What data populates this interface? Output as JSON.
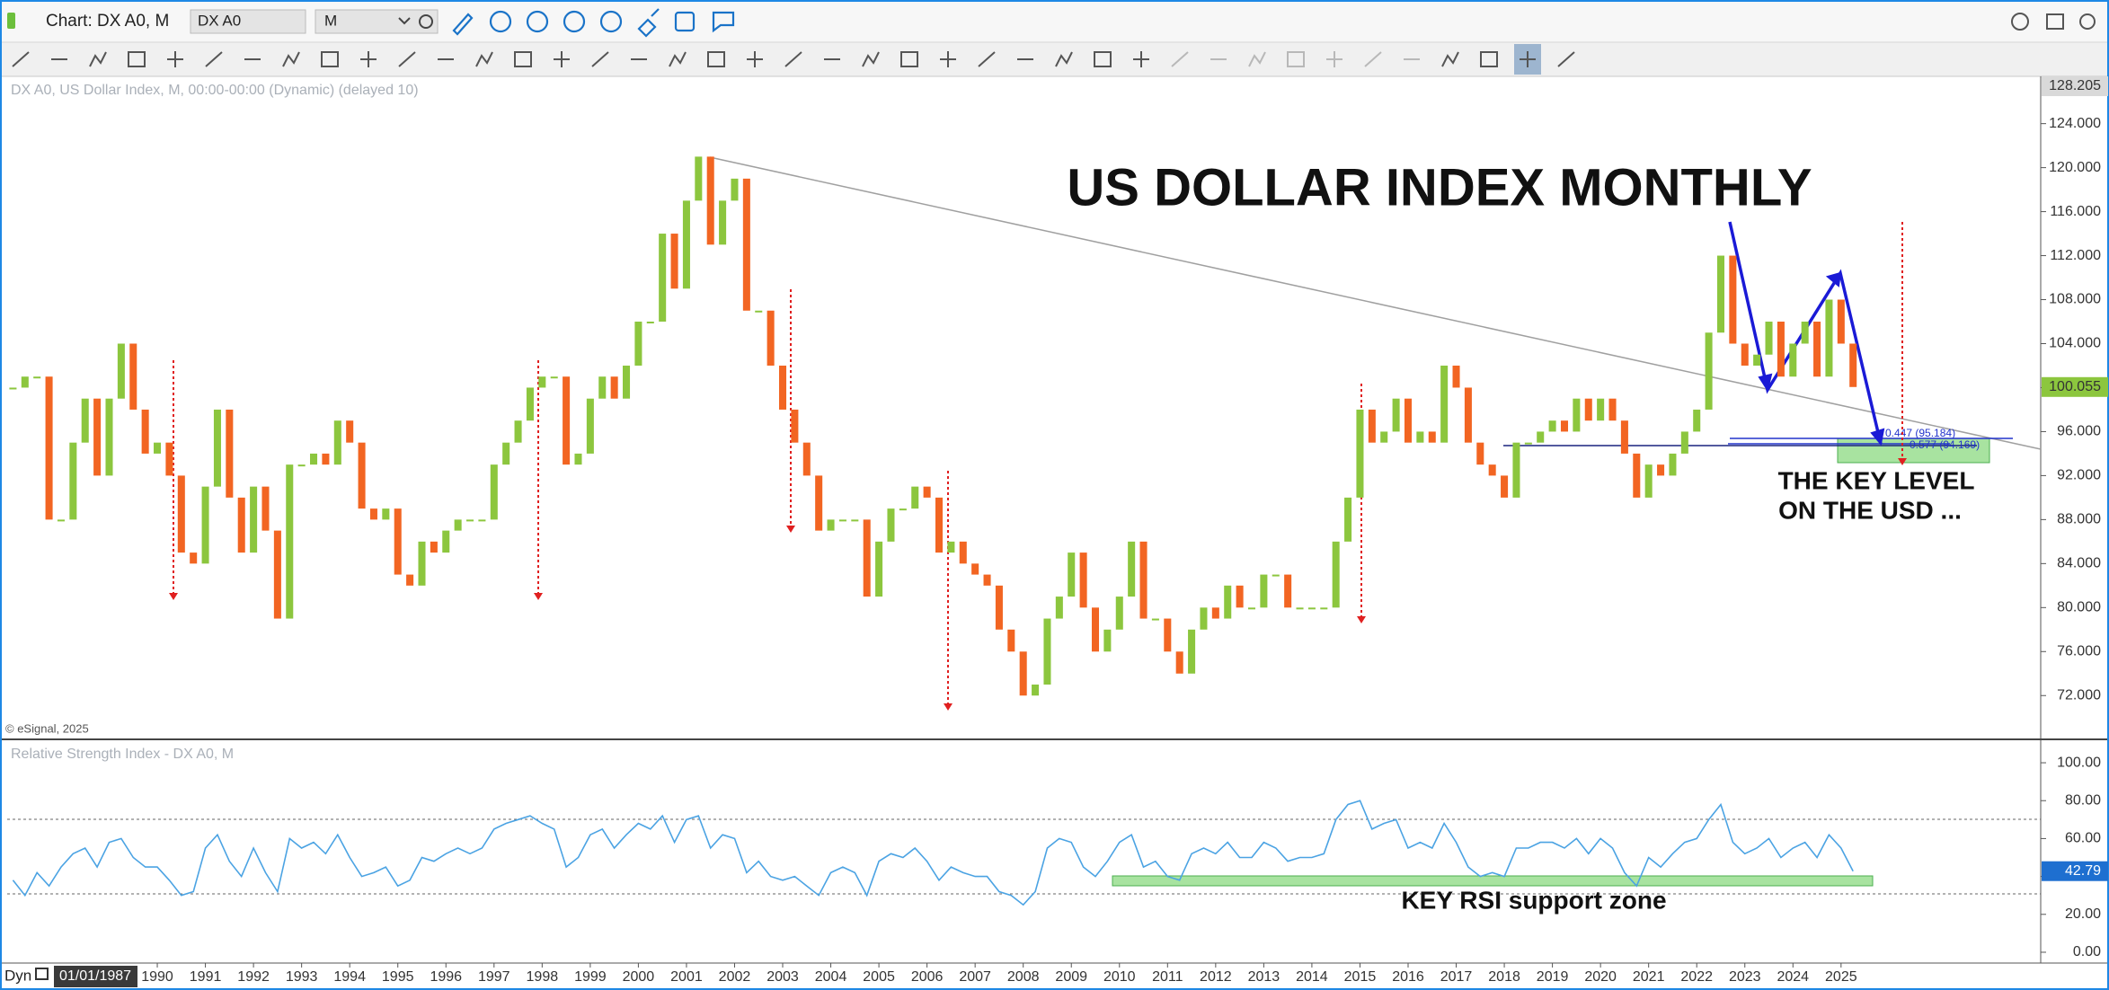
{
  "window": {
    "title": "Chart: DX A0, M",
    "symbol": "DX A0",
    "interval": "M",
    "mode": "Dyn",
    "cursor_date": "01/01/1987"
  },
  "chart_data": [
    {
      "type": "candlestick",
      "title": "US DOLLAR INDEX MONTHLY",
      "subtitle": "DX A0, US Dollar Index, M, 00:00-00:00 (Dynamic) (delayed 10)",
      "annotations": [
        "THE KEY LEVEL",
        "ON THE USD ..."
      ],
      "fib_labels": [
        "0.447 (95.184)",
        "0.577 (94.169)"
      ],
      "source": "© eSignal, 2025",
      "scale_top_label": 128.205,
      "up_color": "#8cc63e",
      "down_color": "#f26522",
      "grid": false,
      "xlim": [
        1986.88,
        2029.15
      ],
      "ylim": [
        68.1,
        128.3
      ],
      "yticks": [
        {
          "value": 72,
          "label": "72.000"
        },
        {
          "value": 76,
          "label": "76.000"
        },
        {
          "value": 80,
          "label": "80.000"
        },
        {
          "value": 84,
          "label": "84.000"
        },
        {
          "value": 88,
          "label": "88.000"
        },
        {
          "value": 92,
          "label": "92.000"
        },
        {
          "value": 96,
          "label": "96.000"
        },
        {
          "value": 100,
          "label": "100.000"
        },
        {
          "value": 104,
          "label": "104.000"
        },
        {
          "value": 108,
          "label": "108.000"
        },
        {
          "value": 112,
          "label": "112.000"
        },
        {
          "value": 116,
          "label": "116.000"
        },
        {
          "value": 120,
          "label": "120.000"
        },
        {
          "value": 124,
          "label": "124.000"
        }
      ],
      "x": [
        1987,
        1987.25,
        1987.5,
        1987.75,
        1988,
        1988.25,
        1988.5,
        1988.75,
        1989,
        1989.25,
        1989.5,
        1989.75,
        1990,
        1990.25,
        1990.5,
        1990.75,
        1991,
        1991.25,
        1991.5,
        1991.75,
        1992,
        1992.25,
        1992.5,
        1992.75,
        1993,
        1993.25,
        1993.5,
        1993.75,
        1994,
        1994.25,
        1994.5,
        1994.75,
        1995,
        1995.25,
        1995.5,
        1995.75,
        1996,
        1996.25,
        1996.5,
        1996.75,
        1997,
        1997.25,
        1997.5,
        1997.75,
        1998,
        1998.25,
        1998.5,
        1998.75,
        1999,
        1999.25,
        1999.5,
        1999.75,
        2000,
        2000.25,
        2000.5,
        2000.75,
        2001,
        2001.25,
        2001.5,
        2001.75,
        2002,
        2002.25,
        2002.5,
        2002.75,
        2003,
        2003.25,
        2003.5,
        2003.75,
        2004,
        2004.25,
        2004.5,
        2004.75,
        2005,
        2005.25,
        2005.5,
        2005.75,
        2006,
        2006.25,
        2006.5,
        2006.75,
        2007,
        2007.25,
        2007.5,
        2007.75,
        2008,
        2008.25,
        2008.5,
        2008.75,
        2009,
        2009.25,
        2009.5,
        2009.75,
        2010,
        2010.25,
        2010.5,
        2010.75,
        2011,
        2011.25,
        2011.5,
        2011.75,
        2012,
        2012.25,
        2012.5,
        2012.75,
        2013,
        2013.25,
        2013.5,
        2013.75,
        2014,
        2014.25,
        2014.5,
        2014.75,
        2015,
        2015.25,
        2015.5,
        2015.75,
        2016,
        2016.25,
        2016.5,
        2016.75,
        2017,
        2017.25,
        2017.5,
        2017.75,
        2018,
        2018.25,
        2018.5,
        2018.75,
        2019,
        2019.25,
        2019.5,
        2019.75,
        2020,
        2020.25,
        2020.5,
        2020.75,
        2021,
        2021.25,
        2021.5,
        2021.75,
        2022,
        2022.25,
        2022.5,
        2022.75,
        2023,
        2023.25,
        2023.5,
        2023.75,
        2024,
        2024.25,
        2024.5,
        2024.75,
        2025,
        2025.25
      ],
      "values": [
        100,
        101,
        101,
        88,
        88,
        95,
        99,
        92,
        99,
        104,
        98,
        94,
        95,
        92,
        85,
        84,
        91,
        98,
        90,
        85,
        91,
        87,
        79,
        93,
        93,
        94,
        93,
        97,
        95,
        89,
        88,
        89,
        83,
        82,
        86,
        85,
        87,
        88,
        88,
        88,
        93,
        95,
        97,
        100,
        101,
        101,
        93,
        94,
        99,
        101,
        99,
        102,
        106,
        106,
        114,
        109,
        117,
        121,
        113,
        117,
        119,
        107,
        107,
        102,
        98,
        95,
        92,
        87,
        88,
        88,
        88,
        81,
        86,
        89,
        89,
        91,
        90,
        85,
        86,
        84,
        83,
        82,
        78,
        76,
        72,
        73,
        79,
        81,
        85,
        80,
        76,
        78,
        81,
        86,
        79,
        79,
        76,
        74,
        78,
        80,
        79,
        82,
        80,
        80,
        83,
        83,
        80,
        80,
        80,
        80,
        86,
        90,
        98,
        95,
        96,
        99,
        95,
        96,
        95,
        102,
        100,
        95,
        93,
        92,
        90,
        95,
        95,
        96,
        97,
        96,
        99,
        97,
        99,
        97,
        94,
        90,
        93,
        92,
        94,
        96,
        98,
        105,
        112,
        104,
        102,
        103,
        106,
        101,
        104,
        106,
        101,
        108,
        104,
        100.055
      ]
    },
    {
      "type": "line",
      "title": "Relative Strength Index - DX A0, M",
      "annotation": "KEY RSI support zone",
      "color": "#4ba3e3",
      "grid": false,
      "xlim": [
        1986.88,
        2029.15
      ],
      "xticks": [
        1990,
        1991,
        1992,
        1993,
        1994,
        1995,
        1996,
        1997,
        1998,
        1999,
        2000,
        2001,
        2002,
        2003,
        2004,
        2005,
        2006,
        2007,
        2008,
        2009,
        2010,
        2011,
        2012,
        2013,
        2014,
        2015,
        2016,
        2017,
        2018,
        2019,
        2020,
        2021,
        2022,
        2023,
        2024,
        2025
      ],
      "ylim": [
        -5.7,
        111.4
      ],
      "yticks": [
        {
          "value": 0,
          "label": "0.00"
        },
        {
          "value": 20,
          "label": "20.00"
        },
        {
          "value": 40,
          "label": "40.00"
        },
        {
          "value": 60,
          "label": "60.00"
        },
        {
          "value": 80,
          "label": "80.00"
        },
        {
          "value": 100,
          "label": "100.00"
        }
      ],
      "x": [
        1987,
        1987.25,
        1987.5,
        1987.75,
        1988,
        1988.25,
        1988.5,
        1988.75,
        1989,
        1989.25,
        1989.5,
        1989.75,
        1990,
        1990.25,
        1990.5,
        1990.75,
        1991,
        1991.25,
        1991.5,
        1991.75,
        1992,
        1992.25,
        1992.5,
        1992.75,
        1993,
        1993.25,
        1993.5,
        1993.75,
        1994,
        1994.25,
        1994.5,
        1994.75,
        1995,
        1995.25,
        1995.5,
        1995.75,
        1996,
        1996.25,
        1996.5,
        1996.75,
        1997,
        1997.25,
        1997.5,
        1997.75,
        1998,
        1998.25,
        1998.5,
        1998.75,
        1999,
        1999.25,
        1999.5,
        1999.75,
        2000,
        2000.25,
        2000.5,
        2000.75,
        2001,
        2001.25,
        2001.5,
        2001.75,
        2002,
        2002.25,
        2002.5,
        2002.75,
        2003,
        2003.25,
        2003.5,
        2003.75,
        2004,
        2004.25,
        2004.5,
        2004.75,
        2005,
        2005.25,
        2005.5,
        2005.75,
        2006,
        2006.25,
        2006.5,
        2006.75,
        2007,
        2007.25,
        2007.5,
        2007.75,
        2008,
        2008.25,
        2008.5,
        2008.75,
        2009,
        2009.25,
        2009.5,
        2009.75,
        2010,
        2010.25,
        2010.5,
        2010.75,
        2011,
        2011.25,
        2011.5,
        2011.75,
        2012,
        2012.25,
        2012.5,
        2012.75,
        2013,
        2013.25,
        2013.5,
        2013.75,
        2014,
        2014.25,
        2014.5,
        2014.75,
        2015,
        2015.25,
        2015.5,
        2015.75,
        2016,
        2016.25,
        2016.5,
        2016.75,
        2017,
        2017.25,
        2017.5,
        2017.75,
        2018,
        2018.25,
        2018.5,
        2018.75,
        2019,
        2019.25,
        2019.5,
        2019.75,
        2020,
        2020.25,
        2020.5,
        2020.75,
        2021,
        2021.25,
        2021.5,
        2021.75,
        2022,
        2022.25,
        2022.5,
        2022.75,
        2023,
        2023.25,
        2023.5,
        2023.75,
        2024,
        2024.25,
        2024.5,
        2024.75,
        2025,
        2025.25
      ],
      "values": [
        38,
        30,
        42,
        35,
        45,
        52,
        55,
        45,
        58,
        60,
        50,
        45,
        45,
        38,
        30,
        32,
        55,
        62,
        48,
        40,
        55,
        42,
        32,
        60,
        55,
        58,
        52,
        62,
        50,
        40,
        42,
        45,
        35,
        38,
        50,
        48,
        52,
        55,
        52,
        55,
        65,
        68,
        70,
        72,
        68,
        65,
        45,
        50,
        62,
        65,
        55,
        62,
        68,
        65,
        72,
        58,
        70,
        72,
        55,
        62,
        60,
        42,
        48,
        40,
        38,
        40,
        35,
        30,
        42,
        45,
        42,
        30,
        48,
        52,
        50,
        55,
        48,
        38,
        45,
        42,
        40,
        40,
        32,
        30,
        25,
        32,
        55,
        60,
        58,
        45,
        40,
        48,
        58,
        62,
        45,
        48,
        40,
        38,
        52,
        55,
        52,
        58,
        50,
        50,
        58,
        55,
        48,
        50,
        50,
        52,
        70,
        78,
        80,
        65,
        68,
        70,
        55,
        58,
        55,
        68,
        58,
        45,
        40,
        42,
        40,
        55,
        55,
        58,
        58,
        55,
        60,
        52,
        60,
        55,
        42,
        35,
        50,
        45,
        52,
        58,
        60,
        70,
        78,
        58,
        52,
        55,
        60,
        50,
        55,
        58,
        50,
        62,
        55,
        42.79
      ]
    }
  ]
}
